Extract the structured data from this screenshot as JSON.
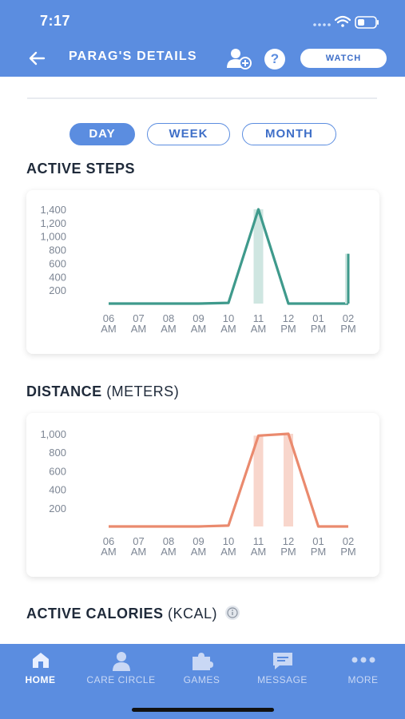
{
  "status": {
    "time": "7:17"
  },
  "header": {
    "title": "PARAG'S DETAILS",
    "help_label": "?",
    "watch_label": "WATCH"
  },
  "segments": [
    {
      "label": "DAY",
      "active": true
    },
    {
      "label": "WEEK",
      "active": false
    },
    {
      "label": "MONTH",
      "active": false
    }
  ],
  "sections": {
    "steps": {
      "title": "ACTIVE STEPS",
      "unit": ""
    },
    "distance": {
      "title": "DISTANCE",
      "unit": "(METERS)"
    },
    "calories": {
      "title": "ACTIVE CALORIES",
      "unit": "(KCAL)"
    }
  },
  "chart_data": [
    {
      "type": "line",
      "title": "ACTIVE STEPS",
      "x": [
        "06 AM",
        "07 AM",
        "08 AM",
        "09 AM",
        "10 AM",
        "11 AM",
        "12 PM",
        "01 PM",
        "02 PM"
      ],
      "values": [
        0,
        0,
        0,
        0,
        10,
        1400,
        0,
        0,
        0
      ],
      "end_spike": {
        "after": "02 PM",
        "value": 740
      },
      "highlight_x": [
        "11 AM"
      ],
      "yticks": [
        200,
        400,
        600,
        800,
        1000,
        1200,
        1400
      ],
      "ytick_labels": [
        "200",
        "400",
        "600",
        "800",
        "1,000",
        "1,200",
        "1,400"
      ],
      "ylim": [
        0,
        1400
      ],
      "color": "#3f9a8c",
      "highlight_color": "#cfe6e1"
    },
    {
      "type": "line",
      "title": "DISTANCE",
      "x": [
        "06 AM",
        "07 AM",
        "08 AM",
        "09 AM",
        "10 AM",
        "11 AM",
        "12 PM",
        "01 PM",
        "02 PM"
      ],
      "values": [
        0,
        0,
        0,
        0,
        10,
        980,
        1000,
        0,
        0
      ],
      "highlight_x": [
        "11 AM",
        "12 PM"
      ],
      "yticks": [
        200,
        400,
        600,
        800,
        1000
      ],
      "ytick_labels": [
        "200",
        "400",
        "600",
        "800",
        "1,000"
      ],
      "ylim": [
        0,
        1000
      ],
      "color": "#ea8a6e",
      "highlight_color": "#f8d6cc"
    }
  ],
  "nav": [
    {
      "label": "HOME",
      "icon": "home-icon",
      "active": true
    },
    {
      "label": "CARE CIRCLE",
      "icon": "person-icon",
      "active": false
    },
    {
      "label": "GAMES",
      "icon": "puzzle-icon",
      "active": false
    },
    {
      "label": "MESSAGE",
      "icon": "message-icon",
      "active": false
    },
    {
      "label": "MORE",
      "icon": "more-icon",
      "active": false
    }
  ],
  "colors": {
    "primary": "#5b8de0",
    "teal": "#3f9a8c",
    "salmon": "#ea8a6e"
  }
}
